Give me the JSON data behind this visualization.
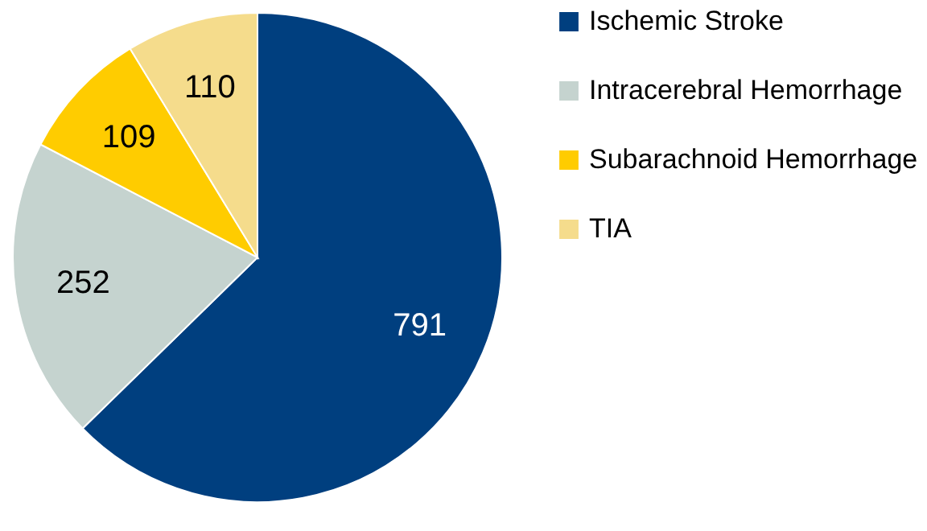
{
  "chart_data": {
    "type": "pie",
    "categories": [
      "Ischemic Stroke",
      "Intracerebral Hemorrhage",
      "Subarachnoid Hemorrhage",
      "TIA"
    ],
    "values": [
      791,
      252,
      109,
      110
    ],
    "colors": [
      "#003f7f",
      "#c5d3cf",
      "#ffcc00",
      "#f5dc8c"
    ],
    "data_labels": true,
    "legend": "right"
  }
}
